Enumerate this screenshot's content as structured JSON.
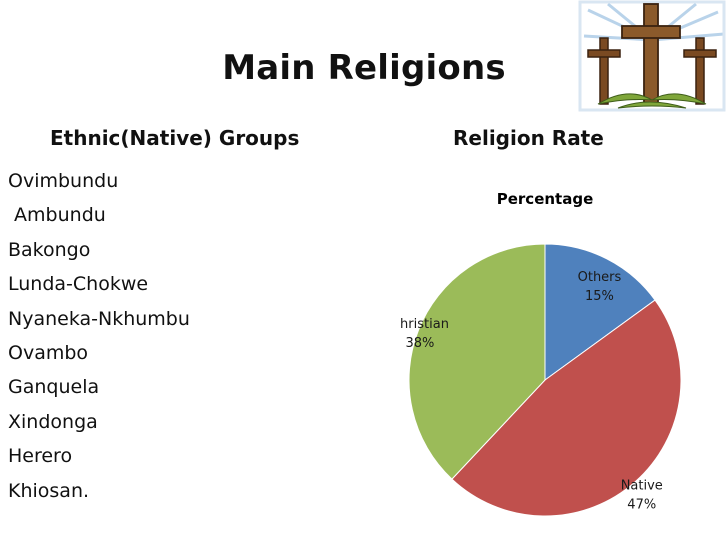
{
  "slide": {
    "title": "Main Religions"
  },
  "left_column": {
    "heading": "Ethnic(Native) Groups",
    "groups": [
      "Ovimbundu",
      " Ambundu",
      "Bakongo",
      "Lunda-Chokwe",
      "Nyaneka-Nkhumbu",
      "Ovambo",
      "Ganquela",
      "Xindonga",
      "Herero",
      "Khiosan."
    ]
  },
  "right_column": {
    "heading": "Religion Rate"
  },
  "logo": {
    "icon": "crosses-icon"
  },
  "chart_data": {
    "type": "pie",
    "title": "Percentage",
    "start_angle_deg": 0,
    "direction": "clockwise",
    "legend": "none",
    "slices": [
      {
        "label": "Others",
        "value": 15,
        "value_label": "15%",
        "color": "#4f81bd"
      },
      {
        "label": "Native",
        "value": 47,
        "value_label": "47%",
        "color": "#c0504d"
      },
      {
        "label": "Christian",
        "value": 38,
        "value_label": "38%",
        "color": "#9bbb59"
      }
    ]
  }
}
